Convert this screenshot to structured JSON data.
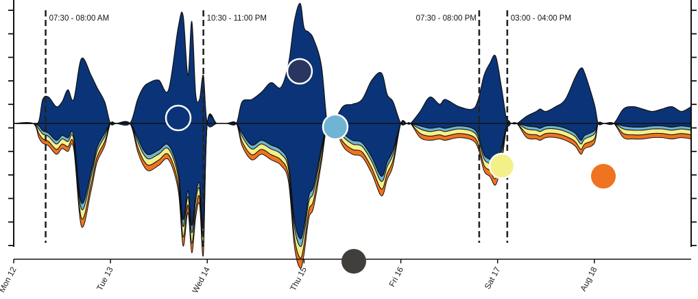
{
  "chart_data": {
    "type": "area",
    "subtype": "streamgraph",
    "title": "",
    "xlabel": "",
    "ylabel": "",
    "x_ticks": [
      "Mon 12",
      "Tue 13",
      "Wed 14",
      "Thu 15",
      "Fri 16",
      "Sat 17",
      "Aug 18"
    ],
    "x_range_days": [
      0,
      7
    ],
    "y_range": [
      -100,
      100
    ],
    "y_ticks_count": 11,
    "grid": false,
    "colors": {
      "navy": "#0b3478",
      "light_blue": "#6fb4d3",
      "yellow": "#f3f08a",
      "orange": "#f0731f",
      "outline": "#111111"
    },
    "annotations": [
      {
        "label": "07:30 - 08:00 AM",
        "day": 0.33
      },
      {
        "label": "10:30 - 11:00 PM",
        "day": 1.96
      },
      {
        "label": "07:30 - 08:00 PM",
        "day": 4.81
      },
      {
        "label": "03:00 - 04:00 PM",
        "day": 5.1
      }
    ],
    "legend_markers": [
      {
        "color": "#ffffff",
        "fill": "#0b3478",
        "style": "ring"
      },
      {
        "color": "#2a3560",
        "style": "solid-ring"
      },
      {
        "color": "#6fb4d3",
        "style": "solid-ring"
      },
      {
        "color": "#f3f08a",
        "style": "solid-ring"
      },
      {
        "color": "#f0731f",
        "style": "solid"
      },
      {
        "color": "#403f3b",
        "style": "solid"
      }
    ],
    "series": [
      {
        "name": "",
        "color": "#0b3478",
        "days": [
          0,
          0.2,
          0.26,
          0.3,
          0.36,
          0.44,
          0.5,
          0.56,
          0.62,
          0.7,
          0.8,
          0.86,
          0.94,
          1.0,
          1.06,
          1.2,
          1.28,
          1.34,
          1.4,
          1.5,
          1.6,
          1.7,
          1.75,
          1.8,
          1.84,
          1.88,
          1.92,
          1.96,
          2.0,
          2.1,
          2.2,
          2.3,
          2.36,
          2.46,
          2.56,
          2.66,
          2.76,
          2.84,
          2.9,
          2.96,
          3.0,
          3.05,
          3.1,
          3.18,
          3.24,
          3.3,
          3.4,
          3.5,
          3.6,
          3.7,
          3.8,
          3.86,
          3.92,
          4.0,
          4.06,
          4.1,
          4.2,
          4.3,
          4.4,
          4.46,
          4.6,
          4.74,
          4.8,
          4.86,
          4.92,
          4.98,
          5.04,
          5.1,
          5.14,
          5.2,
          5.3,
          5.4,
          5.44,
          5.5,
          5.6,
          5.7,
          5.8,
          5.86,
          5.9,
          6.0,
          6.04,
          6.1,
          6.2,
          6.3,
          6.4,
          6.5,
          6.6,
          6.7,
          6.8,
          6.9,
          7.0
        ],
        "upper": [
          0,
          0,
          2,
          20,
          22,
          14,
          18,
          28,
          20,
          54,
          40,
          30,
          18,
          0,
          0,
          0,
          20,
          30,
          34,
          36,
          28,
          80,
          90,
          40,
          85,
          25,
          20,
          40,
          0,
          0,
          0,
          0,
          18,
          20,
          26,
          34,
          30,
          50,
          85,
          100,
          80,
          76,
          70,
          48,
          0,
          0,
          14,
          16,
          20,
          36,
          42,
          24,
          18,
          0,
          0,
          0,
          10,
          22,
          16,
          20,
          14,
          12,
          20,
          40,
          50,
          56,
          30,
          0,
          0,
          0,
          6,
          10,
          12,
          10,
          14,
          20,
          38,
          46,
          42,
          16,
          0,
          0,
          0,
          12,
          14,
          12,
          10,
          12,
          14,
          10,
          14
        ],
        "lower": [
          0,
          0,
          -2,
          -6,
          -8,
          -14,
          -10,
          -12,
          -10,
          -66,
          -40,
          -20,
          -8,
          0,
          0,
          0,
          -12,
          -22,
          -26,
          -22,
          -18,
          -40,
          -80,
          -56,
          -85,
          -60,
          -50,
          -86,
          0,
          0,
          0,
          0,
          -8,
          -18,
          -14,
          -18,
          -22,
          -34,
          -80,
          -96,
          -86,
          -60,
          -52,
          -20,
          0,
          0,
          -8,
          -14,
          -16,
          -28,
          -44,
          -32,
          -22,
          0,
          0,
          0,
          -2,
          -4,
          -3,
          -4,
          -2,
          -4,
          -10,
          -26,
          -30,
          -36,
          -20,
          0,
          0,
          0,
          -2,
          -3,
          -4,
          -2,
          -2,
          -4,
          -8,
          -14,
          -10,
          -6,
          0,
          0,
          0,
          -2,
          -3,
          -3,
          -2,
          -2,
          -3,
          -2,
          -3
        ]
      },
      {
        "name": "",
        "color": "#6fb4d3",
        "extra": 2.5
      },
      {
        "name": "",
        "color": "#f3f08a",
        "extra": 3.5
      },
      {
        "name": "",
        "color": "#f0731f",
        "extra": 3
      }
    ]
  }
}
